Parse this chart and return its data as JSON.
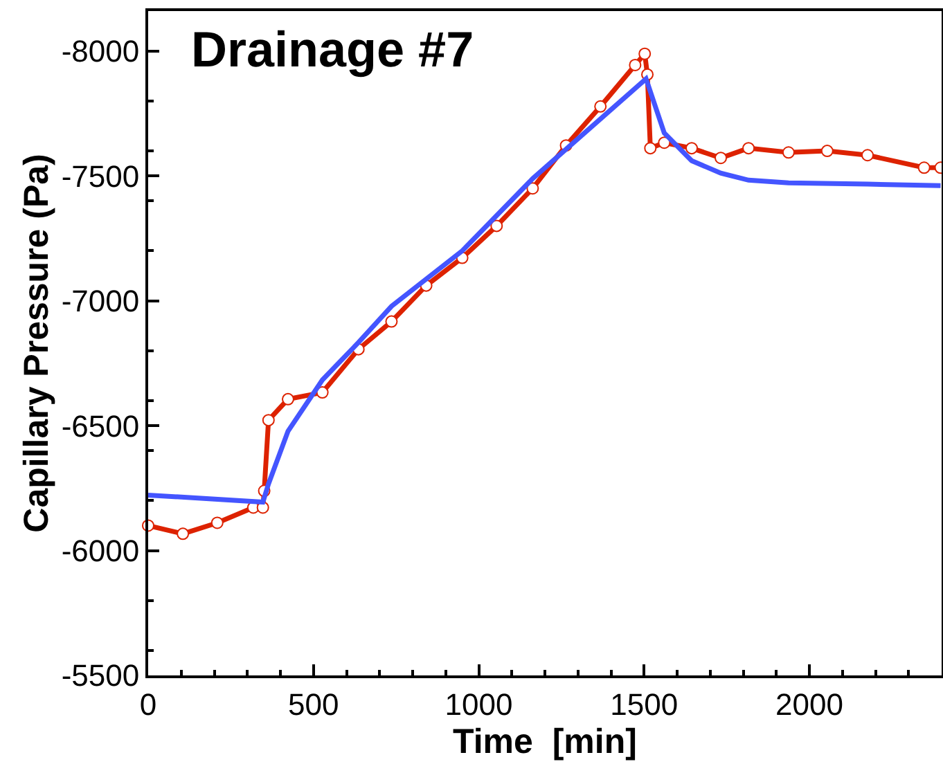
{
  "chart_data": {
    "type": "line",
    "title": "Drainage #7",
    "xlabel": "Time  [min]",
    "ylabel": "Capillary Pressure (Pa)",
    "xlim": [
      0,
      2400
    ],
    "ylim": [
      -5500,
      -8160
    ],
    "xticks": [
      0,
      500,
      1000,
      1500,
      2000
    ],
    "yticks": [
      -5500,
      -6000,
      -6500,
      -7000,
      -7500,
      -8000
    ],
    "grid": false,
    "series": [
      {
        "color": "#dd2200",
        "marker": "circle",
        "x": [
          0,
          105,
          209,
          318,
          347,
          351,
          364,
          423,
          527,
          636,
          736,
          841,
          950,
          1054,
          1163,
          1264,
          1368,
          1473,
          1502,
          1510,
          1519,
          1561,
          1644,
          1732,
          1816,
          1937,
          2054,
          2176,
          2347,
          2397
        ],
        "values": [
          -6100,
          -6067,
          -6111,
          -6172,
          -6172,
          -6239,
          -6522,
          -6606,
          -6633,
          -6806,
          -6917,
          -7061,
          -7172,
          -7300,
          -7450,
          -7622,
          -7778,
          -7944,
          -7989,
          -7906,
          -7611,
          -7633,
          -7611,
          -7572,
          -7611,
          -7594,
          -7600,
          -7583,
          -7533,
          -7533
        ]
      },
      {
        "color": "#4455ff",
        "marker": "none",
        "x": [
          0,
          347,
          364,
          423,
          527,
          636,
          736,
          950,
          1163,
          1506,
          1561,
          1644,
          1732,
          1816,
          1937,
          2176,
          2397
        ],
        "values": [
          -6222,
          -6194,
          -6267,
          -6478,
          -6683,
          -6833,
          -6978,
          -7200,
          -7489,
          -7889,
          -7672,
          -7561,
          -7511,
          -7483,
          -7472,
          -7467,
          -7461
        ]
      }
    ]
  }
}
